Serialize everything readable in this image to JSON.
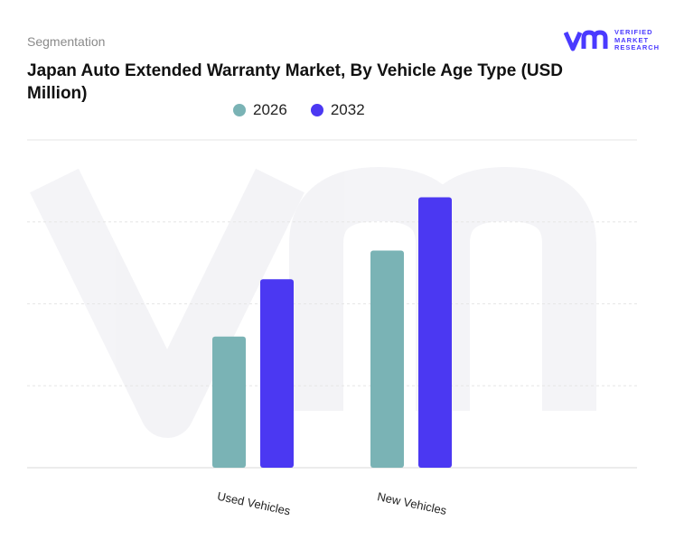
{
  "header": {
    "segmentation": "Segmentation",
    "title": "Japan Auto Extended Warranty Market, By Vehicle Age Type (USD Million)"
  },
  "logo": {
    "line1": "VERIFIED",
    "line2": "MARKET",
    "line3": "RESEARCH",
    "color": "#4a3aff"
  },
  "chart_data": {
    "type": "bar",
    "title": "Japan Auto Extended Warranty Market, By Vehicle Age Type (USD Million)",
    "categories": [
      "Used Vehicles",
      "New Vehicles"
    ],
    "series": [
      {
        "name": "2026",
        "color": "#7ab3b5",
        "values": [
          32,
          53
        ]
      },
      {
        "name": "2032",
        "color": "#4b38f2",
        "values": [
          46,
          66
        ]
      }
    ],
    "ylim": [
      0,
      80
    ],
    "grid": true,
    "legend": "top-center"
  }
}
